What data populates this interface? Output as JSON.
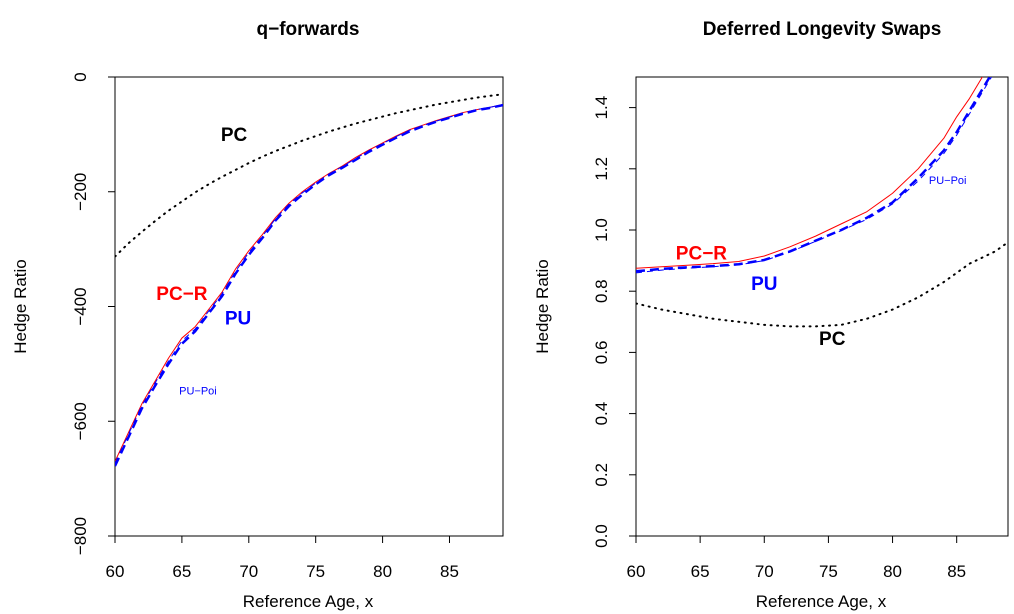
{
  "chart_data": [
    {
      "type": "line",
      "title": "q−forwards",
      "xlabel": "Reference Age, x",
      "ylabel": "Hedge Ratio",
      "xlim": [
        60,
        89
      ],
      "ylim": [
        -800,
        0
      ],
      "xticks": [
        60,
        65,
        70,
        75,
        80,
        85
      ],
      "xtick_labels": [
        "60",
        "65",
        "70",
        "75",
        "80",
        "85"
      ],
      "yticks": [
        -800,
        -600,
        -400,
        -200,
        0
      ],
      "ytick_labels": [
        "−800",
        "−600",
        "−400",
        "−200",
        "0"
      ],
      "x": [
        60,
        61,
        62,
        63,
        64,
        65,
        66,
        67,
        68,
        69,
        70,
        71,
        72,
        73,
        74,
        75,
        76,
        77,
        78,
        79,
        80,
        81,
        82,
        83,
        84,
        85,
        86,
        87,
        88,
        89
      ],
      "series": [
        {
          "name": "PC",
          "color": "#000000",
          "style": "dotted",
          "width": 2,
          "values": [
            -313,
            -290,
            -270,
            -251,
            -233,
            -217,
            -201,
            -187,
            -174,
            -162,
            -150,
            -139,
            -129,
            -120,
            -111,
            -103,
            -95,
            -88,
            -81,
            -75,
            -69,
            -63,
            -58,
            -53,
            -48,
            -44,
            -40,
            -36,
            -33,
            -30
          ]
        },
        {
          "name": "PC−R",
          "color": "#ff0000",
          "style": "solid",
          "width": 1,
          "values": [
            -670,
            -620,
            -570,
            -530,
            -490,
            -455,
            -435,
            -405,
            -375,
            -335,
            -303,
            -275,
            -245,
            -220,
            -200,
            -183,
            -168,
            -155,
            -140,
            -127,
            -115,
            -103,
            -92,
            -84,
            -76,
            -69,
            -62,
            -57,
            -53,
            -48
          ]
        },
        {
          "name": "PU",
          "color": "#0000ff",
          "style": "dashed",
          "width": 2.5,
          "values": [
            -678,
            -628,
            -578,
            -538,
            -500,
            -465,
            -443,
            -412,
            -382,
            -343,
            -310,
            -281,
            -250,
            -225,
            -205,
            -187,
            -171,
            -158,
            -144,
            -130,
            -118,
            -106,
            -95,
            -86,
            -78,
            -71,
            -64,
            -58,
            -54,
            -49
          ]
        },
        {
          "name": "PU−Poi",
          "color": "#0000ff",
          "style": "dashed-thin",
          "width": 1,
          "values": [
            -673,
            -623,
            -573,
            -533,
            -495,
            -460,
            -439,
            -408,
            -378,
            -339,
            -306,
            -278,
            -247,
            -222,
            -202,
            -185,
            -169,
            -156,
            -142,
            -128,
            -116,
            -104,
            -93,
            -85,
            -77,
            -70,
            -63,
            -57,
            -53,
            -48
          ]
        }
      ],
      "annotations": [
        {
          "text": "PC",
          "x": 68.9,
          "y": -103,
          "color": "#000000",
          "size": "large"
        },
        {
          "text": "PC−R",
          "x": 65,
          "y": -380,
          "color": "#ff0000",
          "size": "large"
        },
        {
          "text": "PU",
          "x": 69.2,
          "y": -423,
          "color": "#0000ff",
          "size": "large"
        },
        {
          "text": "PU−Poi",
          "x": 66.2,
          "y": -548,
          "color": "#0000ff",
          "size": "small"
        }
      ]
    },
    {
      "type": "line",
      "title": "Deferred Longevity Swaps",
      "xlabel": "Reference Age, x",
      "ylabel": "Hedge Ratio",
      "xlim": [
        60,
        89
      ],
      "ylim": [
        0,
        1.5
      ],
      "xticks": [
        60,
        65,
        70,
        75,
        80,
        85
      ],
      "xtick_labels": [
        "60",
        "65",
        "70",
        "75",
        "80",
        "85"
      ],
      "yticks": [
        0,
        0.2,
        0.4,
        0.6,
        0.8,
        1.0,
        1.2,
        1.4
      ],
      "ytick_labels": [
        "0.0",
        "0.2",
        "0.4",
        "0.6",
        "0.8",
        "1.0",
        "1.2",
        "1.4"
      ],
      "x": [
        60,
        62,
        64,
        66,
        68,
        70,
        72,
        74,
        76,
        78,
        80,
        82,
        84,
        85,
        86,
        87,
        88,
        89
      ],
      "series": [
        {
          "name": "PC",
          "color": "#000000",
          "style": "dotted",
          "width": 2,
          "values": [
            0.76,
            0.74,
            0.725,
            0.71,
            0.7,
            0.69,
            0.685,
            0.685,
            0.69,
            0.71,
            0.74,
            0.78,
            0.83,
            0.86,
            0.89,
            0.91,
            0.93,
            0.96
          ]
        },
        {
          "name": "PC−R",
          "color": "#ff0000",
          "style": "solid",
          "width": 1,
          "values": [
            0.875,
            0.88,
            0.885,
            0.89,
            0.897,
            0.915,
            0.945,
            0.98,
            1.02,
            1.06,
            1.12,
            1.2,
            1.3,
            1.37,
            1.43,
            1.5,
            1.56,
            1.62
          ]
        },
        {
          "name": "PU",
          "color": "#0000ff",
          "style": "dashed",
          "width": 2.5,
          "values": [
            0.865,
            0.873,
            0.878,
            0.882,
            0.888,
            0.902,
            0.93,
            0.965,
            1.0,
            1.04,
            1.09,
            1.17,
            1.26,
            1.32,
            1.39,
            1.46,
            1.53,
            1.59
          ]
        },
        {
          "name": "PU−Poi",
          "color": "#0000ff",
          "style": "dashed-thin",
          "width": 1,
          "values": [
            0.86,
            0.869,
            0.875,
            0.88,
            0.886,
            0.9,
            0.928,
            0.963,
            0.998,
            1.035,
            1.085,
            1.16,
            1.25,
            1.31,
            1.38,
            1.45,
            1.52,
            1.58
          ]
        }
      ],
      "annotations": [
        {
          "text": "PC−R",
          "x": 65.1,
          "y": 0.92,
          "color": "#ff0000",
          "size": "large"
        },
        {
          "text": "PU",
          "x": 70,
          "y": 0.82,
          "color": "#0000ff",
          "size": "large"
        },
        {
          "text": "PU−Poi",
          "x": 84.3,
          "y": 1.16,
          "color": "#0000ff",
          "size": "small"
        },
        {
          "text": "PC",
          "x": 75.3,
          "y": 0.64,
          "color": "#000000",
          "size": "large"
        }
      ]
    }
  ]
}
